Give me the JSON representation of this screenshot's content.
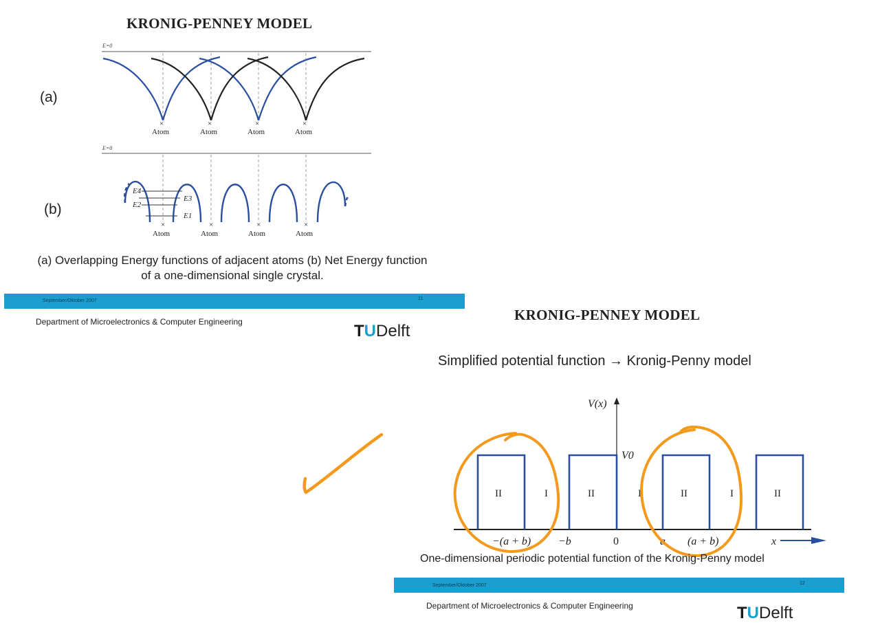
{
  "slide1": {
    "title": "KRONIG-PENNEY MODEL",
    "panel_a_label": "(a)",
    "panel_b_label": "(b)",
    "energy_zero_label": "E=0",
    "atom_label": "Atom",
    "atom_marker": "×",
    "level_labels": [
      "E4",
      "E2",
      "E3",
      "E1"
    ],
    "caption_line1": "(a) Overlapping Energy functions of adjacent atoms (b) Net Energy function",
    "caption_line2": "of a one-dimensional single crystal.",
    "footer_date": "September/Oktober 2007",
    "footer_page": "11",
    "department": "Department of Microelectronics & Computer Engineering",
    "logo_text": "TUDelft"
  },
  "slide2": {
    "title": "KRONIG-PENNEY MODEL",
    "subtitle": "Simplified potential function → Kronig-Penny model",
    "y_axis_label": "V(x)",
    "v0_label": "V0",
    "region_labels": [
      "II",
      "I",
      "II",
      "I",
      "II",
      "I",
      "II"
    ],
    "x_tick_labels": [
      "−(a + b)",
      "−b",
      "0",
      "a",
      "(a + b)",
      "x"
    ],
    "caption": "One-dimensional periodic potential function of the Kronig-Penny model",
    "footer_date": "September/Oktober 2007",
    "footer_page": "12",
    "department": "Department of Microelectronics & Computer Engineering",
    "logo_text": "TUDelft"
  },
  "colors": {
    "accent_blue": "#1a9fd0",
    "curve_blue": "#2a4fa0",
    "curve_black": "#222222",
    "annotation_orange": "#f39a1e"
  }
}
